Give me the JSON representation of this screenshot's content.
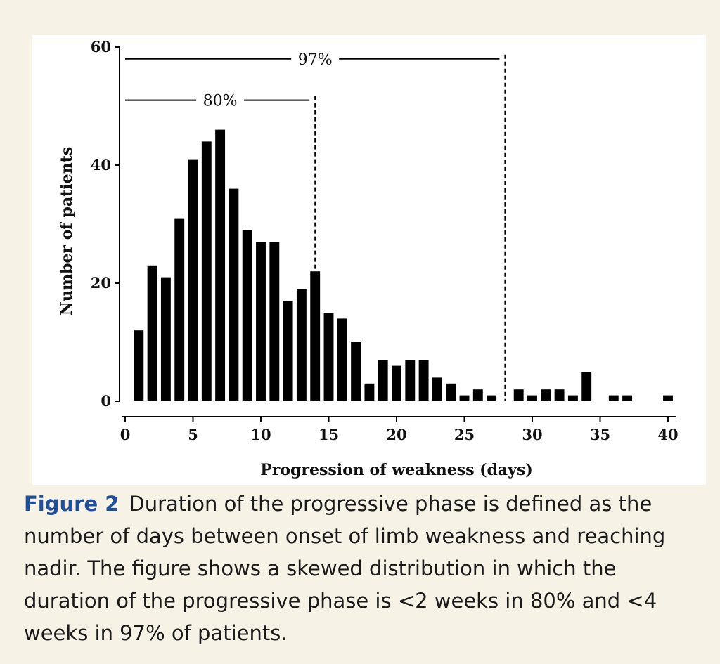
{
  "chart_data": {
    "type": "bar",
    "title": "",
    "xlabel": "Progression of weakness (days)",
    "ylabel": "Number of patients",
    "xlim": [
      0,
      40
    ],
    "ylim": [
      0,
      60
    ],
    "x_ticks": [
      "0",
      "5",
      "10",
      "15",
      "20",
      "25",
      "30",
      "35",
      "40"
    ],
    "y_ticks": [
      "0",
      "20",
      "40",
      "60"
    ],
    "bar_color": "#000000",
    "grid": false,
    "x": [
      1,
      2,
      3,
      4,
      5,
      6,
      7,
      8,
      9,
      10,
      11,
      12,
      13,
      14,
      15,
      16,
      17,
      18,
      19,
      20,
      21,
      22,
      23,
      24,
      25,
      26,
      27,
      29,
      30,
      31,
      32,
      33,
      34,
      36,
      37,
      40
    ],
    "values": [
      12,
      23,
      21,
      31,
      41,
      44,
      46,
      36,
      29,
      27,
      27,
      17,
      19,
      22,
      15,
      14,
      10,
      3,
      7,
      6,
      7,
      7,
      4,
      3,
      1,
      2,
      1,
      2,
      1,
      2,
      2,
      1,
      5,
      1,
      1,
      1
    ],
    "annotations": [
      {
        "label": "80%",
        "x": 14,
        "y": 51
      },
      {
        "label": "97%",
        "x": 28,
        "y": 58
      }
    ]
  },
  "caption": {
    "label": "Figure 2",
    "text": "Duration of the progressive phase is defined as the number of days between onset of limb weakness and reaching nadir. The figure shows a skewed distribution in which the duration of the progressive phase is <2 weeks in 80% and <4 weeks in 97% of patients."
  }
}
